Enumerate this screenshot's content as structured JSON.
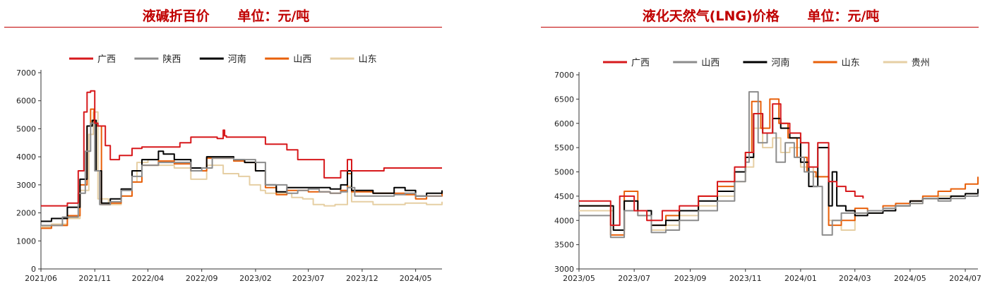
{
  "charts": [
    {
      "title": "液碱折百价      单位：元/吨",
      "chart_data": {
        "type": "line",
        "title": "液碱折百价      单位：元/吨",
        "ylim": [
          0,
          7000
        ],
        "yticks": [
          0,
          1000,
          2000,
          3000,
          4000,
          5000,
          6000,
          7000
        ],
        "xlim": [
          "2021-06-01",
          "2024-07-15"
        ],
        "xticks": [
          "2021/06",
          "2021/11",
          "2022/04",
          "2022/09",
          "2023/02",
          "2023/07",
          "2023/12",
          "2024/05"
        ],
        "xtick_dates": [
          "2021-06-01",
          "2021-11-01",
          "2022-04-01",
          "2022-09-01",
          "2023-02-01",
          "2023-07-01",
          "2023-12-01",
          "2024-05-01"
        ],
        "grid": false,
        "legend": "top",
        "series": [
          {
            "name": "广西",
            "color": "#d7191c",
            "x": [
              "2021-06-01",
              "2021-08-15",
              "2021-09-15",
              "2021-10-01",
              "2021-10-10",
              "2021-10-20",
              "2021-11-01",
              "2021-11-10",
              "2021-12-01",
              "2021-12-15",
              "2022-01-10",
              "2022-02-15",
              "2022-03-15",
              "2022-06-01",
              "2022-07-01",
              "2022-08-01",
              "2022-09-01",
              "2022-10-15",
              "2022-11-01",
              "2022-11-05",
              "2022-11-10",
              "2022-12-01",
              "2023-01-01",
              "2023-03-01",
              "2023-05-01",
              "2023-06-01",
              "2023-08-15",
              "2023-10-01",
              "2023-10-20",
              "2023-11-01",
              "2024-02-01",
              "2024-07-15"
            ],
            "y": [
              2250,
              2350,
              3500,
              5600,
              6300,
              6350,
              5200,
              5100,
              4400,
              3900,
              4050,
              4300,
              4350,
              4350,
              4500,
              4700,
              4700,
              4650,
              4950,
              4750,
              4700,
              4700,
              4700,
              4450,
              4250,
              3900,
              3250,
              3500,
              3900,
              3500,
              3600,
              3600
            ]
          },
          {
            "name": "陕西",
            "color": "#8c8c8c",
            "x": [
              "2021-06-01",
              "2021-08-01",
              "2021-09-15",
              "2021-10-05",
              "2021-10-20",
              "2021-11-01",
              "2021-11-15",
              "2021-12-15",
              "2022-01-15",
              "2022-02-15",
              "2022-03-15",
              "2022-05-01",
              "2022-06-15",
              "2022-08-01",
              "2022-09-01",
              "2022-10-01",
              "2022-12-01",
              "2023-01-01",
              "2023-02-01",
              "2023-03-01",
              "2023-05-01",
              "2023-06-01",
              "2023-07-01",
              "2023-08-01",
              "2023-09-01",
              "2023-10-01",
              "2023-10-20",
              "2023-11-10",
              "2024-01-01",
              "2024-03-01",
              "2024-04-01",
              "2024-05-01",
              "2024-06-01",
              "2024-07-15"
            ],
            "y": [
              1550,
              1850,
              2700,
              4200,
              5200,
              3500,
              2300,
              2400,
              2800,
              3300,
              3700,
              3800,
              3800,
              3500,
              3600,
              3950,
              3900,
              3900,
              3800,
              3000,
              2700,
              2800,
              2850,
              2750,
              2700,
              2750,
              2900,
              2600,
              2600,
              2650,
              2700,
              2600,
              2600,
              2600
            ]
          },
          {
            "name": "河南",
            "color": "#000000",
            "x": [
              "2021-06-01",
              "2021-07-01",
              "2021-08-15",
              "2021-09-20",
              "2021-10-10",
              "2021-10-25",
              "2021-11-05",
              "2021-11-20",
              "2021-12-15",
              "2022-01-15",
              "2022-02-15",
              "2022-03-15",
              "2022-05-01",
              "2022-05-15",
              "2022-06-15",
              "2022-08-01",
              "2022-09-01",
              "2022-09-15",
              "2022-12-01",
              "2023-01-01",
              "2023-02-01",
              "2023-03-01",
              "2023-04-01",
              "2023-05-01",
              "2023-07-01",
              "2023-09-01",
              "2023-10-01",
              "2023-10-20",
              "2023-11-01",
              "2024-01-01",
              "2024-03-01",
              "2024-04-01",
              "2024-05-01",
              "2024-06-01",
              "2024-07-15"
            ],
            "y": [
              1700,
              1800,
              2200,
              3200,
              5100,
              5300,
              3500,
              2350,
              2500,
              2850,
              3500,
              3900,
              4200,
              4100,
              3900,
              3600,
              3600,
              4000,
              3900,
              3800,
              3500,
              3000,
              2750,
              2900,
              2900,
              2850,
              3000,
              3500,
              2800,
              2700,
              2900,
              2800,
              2600,
              2700,
              2800
            ]
          },
          {
            "name": "山西",
            "color": "#e8600a",
            "x": [
              "2021-06-01",
              "2021-07-01",
              "2021-08-15",
              "2021-09-20",
              "2021-10-10",
              "2021-10-20",
              "2021-10-30",
              "2021-11-05",
              "2021-11-20",
              "2021-12-15",
              "2022-01-15",
              "2022-02-15",
              "2022-03-15",
              "2022-05-01",
              "2022-06-15",
              "2022-08-01",
              "2022-09-01",
              "2022-09-15",
              "2022-12-01",
              "2023-01-01",
              "2023-02-01",
              "2023-03-01",
              "2023-04-01",
              "2023-05-01",
              "2023-07-01",
              "2023-09-01",
              "2023-10-01",
              "2023-10-20",
              "2023-11-01",
              "2024-01-01",
              "2024-03-01",
              "2024-04-01",
              "2024-05-01",
              "2024-06-01",
              "2024-07-15"
            ],
            "y": [
              1450,
              1550,
              1900,
              3000,
              5100,
              5700,
              5200,
              5100,
              2300,
              2350,
              2600,
              3100,
              3700,
              3850,
              3750,
              3500,
              3500,
              3950,
              3850,
              3800,
              3500,
              2900,
              2650,
              2800,
              2750,
              2700,
              2800,
              3400,
              2750,
              2700,
              2700,
              2650,
              2500,
              2600,
              2800
            ]
          },
          {
            "name": "山东",
            "color": "#e6cfa4",
            "x": [
              "2021-06-01",
              "2021-07-01",
              "2021-08-15",
              "2021-09-20",
              "2021-10-15",
              "2021-10-28",
              "2021-11-10",
              "2021-12-10",
              "2022-01-15",
              "2022-02-15",
              "2022-03-01",
              "2022-04-01",
              "2022-05-01",
              "2022-06-15",
              "2022-08-01",
              "2022-09-01",
              "2022-09-15",
              "2022-11-01",
              "2022-12-15",
              "2023-01-15",
              "2023-02-15",
              "2023-03-01",
              "2023-04-15",
              "2023-05-15",
              "2023-06-15",
              "2023-07-15",
              "2023-08-15",
              "2023-09-15",
              "2023-10-20",
              "2023-11-01",
              "2024-01-01",
              "2024-04-01",
              "2024-06-01",
              "2024-07-15"
            ],
            "y": [
              1500,
              1600,
              1800,
              2800,
              4800,
              5600,
              2500,
              2300,
              2600,
              3100,
              3800,
              3900,
              3700,
              3600,
              3200,
              3200,
              3700,
              3400,
              3300,
              3000,
              2800,
              2700,
              2700,
              2550,
              2500,
              2300,
              2250,
              2300,
              2950,
              2400,
              2300,
              2350,
              2300,
              2400
            ]
          }
        ]
      }
    },
    {
      "title": "液化天然气(LNG)价格      单位：元/吨",
      "chart_data": {
        "type": "line",
        "title": "液化天然气(LNG)价格      单位：元/吨",
        "ylim": [
          3000,
          7000
        ],
        "yticks": [
          3000,
          3500,
          4000,
          4500,
          5000,
          5500,
          6000,
          6500,
          7000
        ],
        "xlim": [
          "2023-05-01",
          "2024-07-15"
        ],
        "xticks": [
          "2023/05",
          "2023/07",
          "2023/09",
          "2023/11",
          "2024/01",
          "2024/03",
          "2024/05",
          "2024/07"
        ],
        "xtick_dates": [
          "2023-05-01",
          "2023-07-01",
          "2023-09-01",
          "2023-11-01",
          "2024-01-01",
          "2024-03-01",
          "2024-05-01",
          "2024-07-01"
        ],
        "grid": false,
        "legend": "top",
        "series": [
          {
            "name": "广西",
            "color": "#d7191c",
            "x": [
              "2023-05-01",
              "2023-05-31",
              "2023-06-05",
              "2023-06-15",
              "2023-07-01",
              "2023-07-15",
              "2023-08-01",
              "2023-08-20",
              "2023-09-10",
              "2023-10-01",
              "2023-10-20",
              "2023-11-01",
              "2023-11-10",
              "2023-11-20",
              "2023-12-01",
              "2023-12-10",
              "2023-12-20",
              "2024-01-01",
              "2024-01-10",
              "2024-01-20",
              "2024-02-01",
              "2024-02-10",
              "2024-02-20",
              "2024-03-01",
              "2024-03-10"
            ],
            "y": [
              4400,
              4400,
              3900,
              4500,
              4200,
              4000,
              4200,
              4300,
              4500,
              4800,
              5100,
              5400,
              6200,
              5800,
              6400,
              6000,
              5800,
              5600,
              5100,
              5600,
              4800,
              4700,
              4600,
              4500,
              4450
            ]
          },
          {
            "name": "山西",
            "color": "#8c8c8c",
            "x": [
              "2023-05-01",
              "2023-05-31",
              "2023-06-05",
              "2023-06-20",
              "2023-07-05",
              "2023-07-20",
              "2023-08-05",
              "2023-08-20",
              "2023-09-10",
              "2023-10-01",
              "2023-10-20",
              "2023-11-01",
              "2023-11-05",
              "2023-11-15",
              "2023-11-25",
              "2023-12-05",
              "2023-12-15",
              "2023-12-25",
              "2024-01-05",
              "2024-01-15",
              "2024-01-25",
              "2024-02-05",
              "2024-02-15",
              "2024-03-01",
              "2024-03-15",
              "2024-04-01",
              "2024-04-15",
              "2024-05-01",
              "2024-05-15",
              "2024-06-01",
              "2024-06-15",
              "2024-07-01",
              "2024-07-15"
            ],
            "y": [
              4100,
              4100,
              3650,
              4200,
              4100,
              3750,
              3800,
              4000,
              4200,
              4400,
              4800,
              5200,
              6650,
              5600,
              5800,
              5200,
              5600,
              5300,
              5000,
              4700,
              3700,
              4000,
              4150,
              4150,
              4200,
              4250,
              4300,
              4350,
              4450,
              4400,
              4450,
              4500,
              4550
            ]
          },
          {
            "name": "河南",
            "color": "#000000",
            "x": [
              "2023-05-01",
              "2023-05-31",
              "2023-06-08",
              "2023-06-20",
              "2023-07-05",
              "2023-07-20",
              "2023-08-05",
              "2023-08-20",
              "2023-09-10",
              "2023-10-01",
              "2023-10-20",
              "2023-11-01",
              "2023-11-10",
              "2023-11-20",
              "2023-12-01",
              "2023-12-10",
              "2023-12-20",
              "2024-01-01",
              "2024-01-10",
              "2024-01-20",
              "2024-02-01",
              "2024-02-05",
              "2024-02-10",
              "2024-02-20",
              "2024-03-01",
              "2024-03-15",
              "2024-04-01",
              "2024-04-15",
              "2024-05-01",
              "2024-05-15",
              "2024-06-01",
              "2024-06-15",
              "2024-07-01",
              "2024-07-15"
            ],
            "y": [
              4300,
              4300,
              3800,
              4400,
              4200,
              3900,
              4000,
              4200,
              4400,
              4600,
              5000,
              5300,
              6200,
              5800,
              6100,
              5900,
              5700,
              5200,
              4700,
              5500,
              4300,
              5000,
              4300,
              4200,
              4100,
              4150,
              4200,
              4300,
              4400,
              4450,
              4450,
              4500,
              4550,
              4650
            ]
          },
          {
            "name": "山东",
            "color": "#e8600a",
            "x": [
              "2023-05-01",
              "2023-05-31",
              "2023-06-05",
              "2023-06-20",
              "2023-07-05",
              "2023-07-20",
              "2023-08-05",
              "2023-08-20",
              "2023-09-10",
              "2023-10-01",
              "2023-10-20",
              "2023-11-01",
              "2023-11-08",
              "2023-11-18",
              "2023-11-28",
              "2023-12-08",
              "2023-12-18",
              "2023-12-28",
              "2024-01-08",
              "2024-01-18",
              "2024-02-01",
              "2024-02-15",
              "2024-03-01",
              "2024-03-15",
              "2024-04-01",
              "2024-04-15",
              "2024-05-01",
              "2024-05-15",
              "2024-06-01",
              "2024-06-15",
              "2024-07-01",
              "2024-07-15"
            ],
            "y": [
              4300,
              4300,
              3700,
              4600,
              4200,
              3900,
              4100,
              4200,
              4500,
              4700,
              5000,
              5400,
              6450,
              5900,
              6500,
              6000,
              5700,
              5300,
              5000,
              4900,
              3900,
              4000,
              4250,
              4200,
              4300,
              4350,
              4400,
              4500,
              4600,
              4650,
              4750,
              4900
            ]
          },
          {
            "name": "贵州",
            "color": "#e6cfa4",
            "x": [
              "2023-05-01",
              "2023-05-31",
              "2023-06-08",
              "2023-06-20",
              "2023-07-05",
              "2023-07-20",
              "2023-08-05",
              "2023-08-20",
              "2023-09-10",
              "2023-10-01",
              "2023-10-20",
              "2023-11-01",
              "2023-11-10",
              "2023-11-20",
              "2023-12-01",
              "2023-12-10",
              "2023-12-20",
              "2024-01-01",
              "2024-01-15",
              "2024-02-01",
              "2024-02-15",
              "2024-03-01",
              "2024-03-15",
              "2024-04-01",
              "2024-04-15",
              "2024-05-01",
              "2024-05-15",
              "2024-06-01",
              "2024-06-15",
              "2024-07-01",
              "2024-07-15"
            ],
            "y": [
              4200,
              4200,
              3800,
              4400,
              4100,
              3800,
              3900,
              4100,
              4300,
              4500,
              4800,
              5100,
              5900,
              5500,
              5700,
              5400,
              5500,
              5100,
              4900,
              4000,
              3800,
              4150,
              4150,
              4200,
              4300,
              4350,
              4450,
              4500,
              4500,
              4550,
              4600
            ]
          }
        ]
      }
    }
  ]
}
